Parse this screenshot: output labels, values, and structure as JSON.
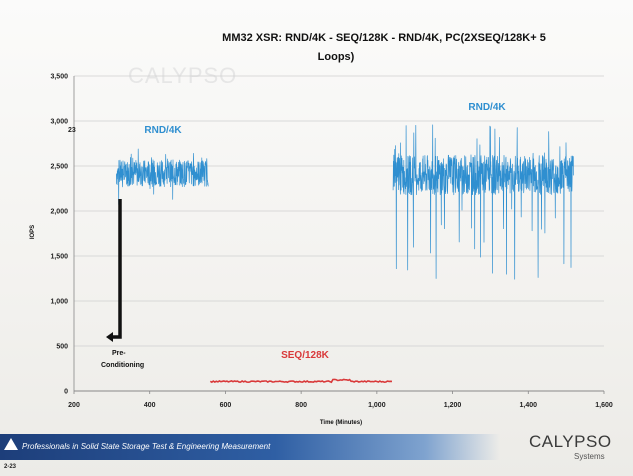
{
  "chart_data": {
    "type": "line",
    "title_line1": "MM32 XSR:  RND/4K - SEQ/128K - RND/4K, PC(2XSEQ/128K+ 5",
    "title_line2": "Loops)",
    "xlabel": "Time (Minutes)",
    "ylabel": "IOPS",
    "xlim": [
      200,
      1600
    ],
    "ylim": [
      0,
      3500
    ],
    "x_ticks": [
      200,
      400,
      600,
      800,
      1000,
      1200,
      1400,
      1600
    ],
    "x_tick_labels": [
      "200",
      "400",
      "600",
      "800",
      "1,000",
      "1,200",
      "1,400",
      "1,600"
    ],
    "y_ticks": [
      0,
      500,
      1000,
      1500,
      2000,
      2500,
      3000,
      3500
    ],
    "y_tick_labels": [
      "0",
      "500",
      "1,000",
      "1,500",
      "2,000",
      "2,500",
      "3,000",
      "3,500"
    ],
    "grid": true,
    "colors": {
      "rnd": "#2f8fd0",
      "seq": "#d9393a",
      "arrow": "#111111"
    },
    "series": [
      {
        "label": "RND/4K",
        "color": "#2f8fd0",
        "x_start": 312,
        "x_end": 555,
        "mean": 2420,
        "band": 150,
        "spike_high": 2700,
        "spike_low": 2050
      },
      {
        "label": "SEQ/128K",
        "color": "#d9393a",
        "x_start": 560,
        "x_end": 1040,
        "mean": 105
      },
      {
        "label": "RND/4K",
        "color": "#2f8fd0",
        "x_start": 1043,
        "x_end": 1520,
        "mean": 2400,
        "band": 220,
        "spike_high": 2960,
        "spike_low": 1200
      }
    ],
    "annotations": {
      "rnd_left": "RND/4K",
      "rnd_right": "RND/4K",
      "seq": "SEQ/128K",
      "precond_line1": "Pre-",
      "precond_line2": "Conditioning",
      "left_tick_note": "23"
    }
  },
  "watermark": {
    "name": "CALYPSO",
    "sub": "Systems"
  },
  "footer": {
    "tagline": "Professionals in Solid State Storage Test & Engineering Measurement",
    "logo_name": "CALYPSO",
    "logo_sub": "Systems",
    "page_number": "2-23"
  }
}
